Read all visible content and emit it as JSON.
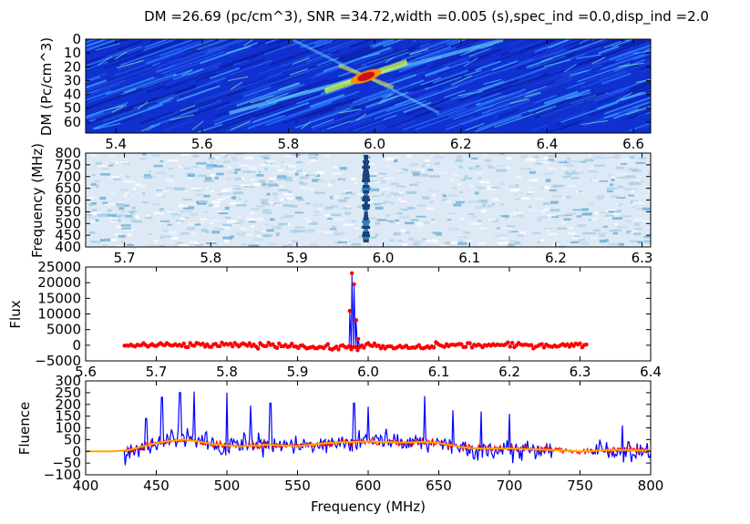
{
  "title": "DM =26.69 (pc/cm^3), SNR =34.72,width =0.005 (s),spec_ind =0.0,disp_ind =2.0",
  "chart_data": [
    {
      "type": "heatmap",
      "id": "dm_time",
      "ylabel": "DM (Pc/cm^3)",
      "xlabel": "",
      "xlim": [
        5.33,
        6.64
      ],
      "ylim": [
        0,
        68
      ],
      "y_inverted": true,
      "xticks": [
        5.4,
        5.6,
        5.8,
        6.0,
        6.2,
        6.4,
        6.6
      ],
      "xtick_labels": [
        "5.4",
        "5.6",
        "5.8",
        "6.0",
        "6.2",
        "6.4",
        "6.6"
      ],
      "yticks": [
        0,
        10,
        20,
        30,
        40,
        50,
        60
      ],
      "ytick_labels": [
        "0",
        "10",
        "20",
        "30",
        "40",
        "50",
        "60"
      ],
      "colormap": "jet",
      "peak": {
        "x": 5.98,
        "y": 27
      }
    },
    {
      "type": "heatmap",
      "id": "dynamic_spectrum",
      "ylabel": "Frequency (MHz)",
      "xlabel": "",
      "xlim": [
        5.655,
        6.31
      ],
      "ylim": [
        400,
        800
      ],
      "xticks": [
        5.7,
        5.8,
        5.9,
        6.0,
        6.1,
        6.2,
        6.3
      ],
      "xtick_labels": [
        "5.7",
        "5.8",
        "5.9",
        "6.0",
        "6.1",
        "6.2",
        "6.3"
      ],
      "yticks": [
        400,
        450,
        500,
        550,
        600,
        650,
        700,
        750,
        800
      ],
      "ytick_labels": [
        "400",
        "450",
        "500",
        "550",
        "600",
        "650",
        "700",
        "750",
        "800"
      ],
      "colormap": "Blues",
      "burst_time": 5.98
    },
    {
      "type": "line",
      "id": "time_series",
      "ylabel": "Flux",
      "xlabel": "",
      "xlim": [
        5.6,
        6.4
      ],
      "ylim": [
        -5000,
        25000
      ],
      "xticks": [
        5.6,
        5.7,
        5.8,
        5.9,
        6.0,
        6.1,
        6.2,
        6.3,
        6.4
      ],
      "xtick_labels": [
        "5.6",
        "5.7",
        "5.8",
        "5.9",
        "6.0",
        "6.1",
        "6.2",
        "6.3",
        "6.4"
      ],
      "yticks": [
        -5000,
        0,
        5000,
        10000,
        15000,
        20000,
        25000
      ],
      "ytick_labels": [
        "−5000",
        "0",
        "5000",
        "10000",
        "15000",
        "20000",
        "25000"
      ],
      "x_start": 5.655,
      "x_end": 6.31,
      "peak": [
        {
          "x": 5.974,
          "y": 11000
        },
        {
          "x": 5.977,
          "y": 23000
        },
        {
          "x": 5.98,
          "y": 19500
        },
        {
          "x": 5.983,
          "y": 8000
        },
        {
          "x": 5.986,
          "y": 2000
        }
      ],
      "series": [
        {
          "values_note": "",
          "color": "#0000ff"
        },
        {
          "color": "#ff0000"
        }
      ]
    },
    {
      "type": "line",
      "id": "spectrum",
      "ylabel": "Fluence",
      "xlabel": "Frequency (MHz)",
      "xlim": [
        400,
        800
      ],
      "ylim": [
        -100,
        300
      ],
      "xticks": [
        400,
        450,
        500,
        550,
        600,
        650,
        700,
        750,
        800
      ],
      "xtick_labels": [
        "400",
        "450",
        "500",
        "550",
        "600",
        "650",
        "700",
        "750",
        "800"
      ],
      "yticks": [
        -100,
        -50,
        0,
        50,
        100,
        150,
        200,
        250,
        300
      ],
      "ytick_labels": [
        "−100",
        "−50",
        "0",
        "50",
        "100",
        "150",
        "200",
        "250",
        "300"
      ],
      "smooth_x": [
        400,
        420,
        430,
        440,
        450,
        460,
        470,
        480,
        490,
        500,
        510,
        520,
        530,
        540,
        550,
        560,
        570,
        580,
        590,
        600,
        610,
        620,
        630,
        640,
        650,
        660,
        670,
        680,
        690,
        700,
        710,
        720,
        730,
        740,
        750,
        760,
        770,
        780,
        790,
        800
      ],
      "smooth_y": [
        0,
        0,
        5,
        20,
        35,
        45,
        50,
        42,
        30,
        25,
        22,
        25,
        28,
        25,
        22,
        28,
        35,
        38,
        40,
        42,
        40,
        38,
        38,
        40,
        35,
        25,
        15,
        12,
        12,
        12,
        10,
        8,
        6,
        3,
        0,
        2,
        5,
        6,
        4,
        2
      ],
      "peaks": [
        {
          "x": 443,
          "y": 140
        },
        {
          "x": 454,
          "y": 230
        },
        {
          "x": 467,
          "y": 250
        },
        {
          "x": 477,
          "y": 255
        },
        {
          "x": 500,
          "y": 250
        },
        {
          "x": 517,
          "y": 195
        },
        {
          "x": 531,
          "y": 205
        },
        {
          "x": 590,
          "y": 205
        },
        {
          "x": 600,
          "y": 190
        },
        {
          "x": 640,
          "y": 235
        },
        {
          "x": 660,
          "y": 175
        },
        {
          "x": 680,
          "y": 170
        },
        {
          "x": 700,
          "y": 160
        },
        {
          "x": 780,
          "y": 110
        }
      ],
      "series": [
        {
          "color": "#0000ff"
        },
        {
          "color": "#ff0000"
        },
        {
          "color": "#ffa500"
        }
      ]
    }
  ]
}
